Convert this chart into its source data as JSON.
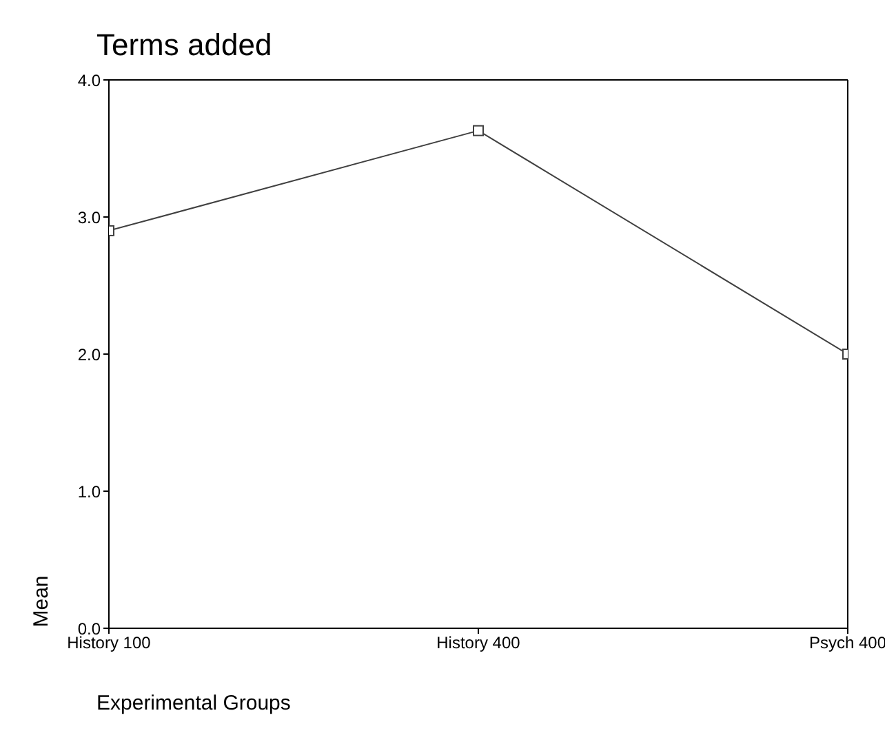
{
  "chart_data": {
    "type": "line",
    "title": "Terms added",
    "xlabel": "Experimental Groups",
    "ylabel": "Mean",
    "categories": [
      "History 100",
      "History 400",
      "Psych 400"
    ],
    "series": [
      {
        "color": "#404040",
        "values": [
          2.9,
          3.63,
          2.0
        ]
      }
    ],
    "ylim": [
      0,
      4
    ],
    "yticks": [
      {
        "value": 0,
        "label": "0.0"
      },
      {
        "value": 1,
        "label": "1.0"
      },
      {
        "value": 2,
        "label": "2.0"
      },
      {
        "value": 3,
        "label": "3.0"
      },
      {
        "value": 4,
        "label": "4.0"
      }
    ],
    "grid": false,
    "legend": false,
    "marker": "square",
    "line_style": "solid"
  }
}
